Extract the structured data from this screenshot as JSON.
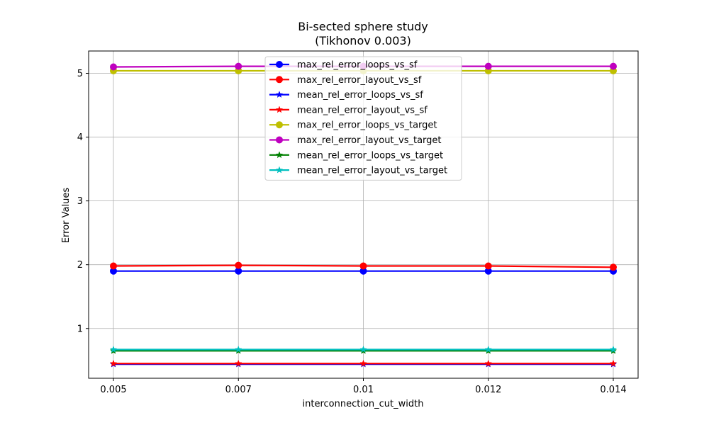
{
  "chart_data": {
    "type": "line",
    "title": "Bi-sected sphere study",
    "subtitle": "(Tikhonov 0.003)",
    "xlabel": "interconnection_cut_width",
    "ylabel": "Error Values",
    "categories": [
      "0.005",
      "0.007",
      "0.01",
      "0.012",
      "0.014"
    ],
    "ylim": [
      0.22,
      5.35
    ],
    "yticks": [
      "1",
      "2",
      "3",
      "4",
      "5"
    ],
    "grid": true,
    "legend_position": "top-center",
    "series": [
      {
        "name": "max_rel_error_loops_vs_sf",
        "color": "#0000ff",
        "marker": "circle",
        "values": [
          1.9,
          1.9,
          1.9,
          1.9,
          1.9
        ]
      },
      {
        "name": "max_rel_error_layout_vs_sf",
        "color": "#ff0000",
        "marker": "circle",
        "values": [
          1.98,
          1.99,
          1.98,
          1.98,
          1.96
        ]
      },
      {
        "name": "mean_rel_error_loops_vs_sf",
        "color": "#0000ff",
        "marker": "star",
        "values": [
          0.44,
          0.44,
          0.44,
          0.44,
          0.44
        ]
      },
      {
        "name": "mean_rel_error_layout_vs_sf",
        "color": "#ff0000",
        "marker": "star",
        "values": [
          0.45,
          0.45,
          0.45,
          0.45,
          0.45
        ]
      },
      {
        "name": "max_rel_error_loops_vs_target",
        "color": "#bfbf00",
        "marker": "circle",
        "values": [
          5.04,
          5.04,
          5.04,
          5.04,
          5.04
        ]
      },
      {
        "name": "max_rel_error_layout_vs_target",
        "color": "#bf00bf",
        "marker": "circle",
        "values": [
          5.1,
          5.11,
          5.11,
          5.11,
          5.11
        ]
      },
      {
        "name": "mean_rel_error_loops_vs_target",
        "color": "#008000",
        "marker": "star",
        "values": [
          0.65,
          0.65,
          0.65,
          0.65,
          0.65
        ]
      },
      {
        "name": "mean_rel_error_layout_vs_target",
        "color": "#00bfbf",
        "marker": "star",
        "values": [
          0.67,
          0.67,
          0.67,
          0.67,
          0.67
        ]
      }
    ]
  }
}
